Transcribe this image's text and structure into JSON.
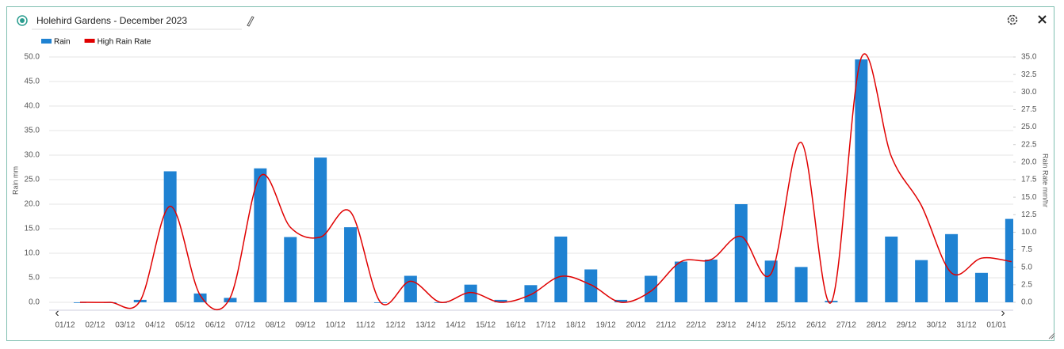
{
  "header": {
    "title": "Holehird Gardens - December 2023"
  },
  "chart_data": {
    "type": "bar-line",
    "y_label": "Rain mm",
    "y2_label": "Rain Rate mm/hr",
    "categories": [
      "01/12",
      "02/12",
      "03/12",
      "04/12",
      "05/12",
      "06/12",
      "07/12",
      "08/12",
      "09/12",
      "10/12",
      "11/12",
      "12/12",
      "13/12",
      "14/12",
      "15/12",
      "16/12",
      "17/12",
      "18/12",
      "19/12",
      "20/12",
      "21/12",
      "22/12",
      "23/12",
      "24/12",
      "25/12",
      "26/12",
      "27/12",
      "28/12",
      "29/12",
      "30/12",
      "31/12",
      "01/01"
    ],
    "series": [
      {
        "name": "Rain",
        "type": "bar",
        "color": "#1f82d2",
        "values": [
          0,
          0,
          0.5,
          26.7,
          1.8,
          0.9,
          27.3,
          13.3,
          29.5,
          15.3,
          0,
          5.4,
          0,
          3.6,
          0.5,
          3.5,
          13.4,
          6.7,
          0.5,
          5.4,
          8.3,
          8.7,
          20.0,
          8.5,
          7.2,
          0.3,
          49.5,
          13.4,
          8.6,
          13.9,
          6.0,
          17.0
        ]
      },
      {
        "name": "High Rain Rate",
        "type": "line",
        "axis": "y2",
        "color": "#e00000",
        "values": [
          0,
          0,
          0.2,
          13.7,
          1.0,
          0.7,
          18.0,
          10.7,
          9.3,
          12.9,
          0,
          3.0,
          0,
          1.4,
          0,
          1.1,
          3.7,
          2.5,
          0,
          1.6,
          5.8,
          6.1,
          9.4,
          4.1,
          22.8,
          0,
          34.9,
          20.8,
          13.8,
          4.2,
          6.3,
          5.8
        ]
      }
    ],
    "ylim": [
      0,
      50
    ],
    "yticks": [
      {
        "value": 0,
        "label": "0.0"
      },
      {
        "value": 5,
        "label": "5.0"
      },
      {
        "value": 10,
        "label": "10.0"
      },
      {
        "value": 15,
        "label": "15.0"
      },
      {
        "value": 20,
        "label": "20.0"
      },
      {
        "value": 25,
        "label": "25.0"
      },
      {
        "value": 30,
        "label": "30.0"
      },
      {
        "value": 35,
        "label": "35.0"
      },
      {
        "value": 40,
        "label": "40.0"
      },
      {
        "value": 45,
        "label": "45.0"
      },
      {
        "value": 50,
        "label": "50.0"
      }
    ],
    "y2lim": [
      0,
      35
    ],
    "y2ticks": [
      {
        "value": 0,
        "label": "0.0"
      },
      {
        "value": 2.5,
        "label": "2.5"
      },
      {
        "value": 5,
        "label": "5.0"
      },
      {
        "value": 7.5,
        "label": "7.5"
      },
      {
        "value": 10,
        "label": "10.0"
      },
      {
        "value": 12.5,
        "label": "12.5"
      },
      {
        "value": 15,
        "label": "15.0"
      },
      {
        "value": 17.5,
        "label": "17.5"
      },
      {
        "value": 20,
        "label": "20.0"
      },
      {
        "value": 22.5,
        "label": "22.5"
      },
      {
        "value": 25,
        "label": "25.0"
      },
      {
        "value": 27.5,
        "label": "27.5"
      },
      {
        "value": 30,
        "label": "30.0"
      },
      {
        "value": 32.5,
        "label": "32.5"
      },
      {
        "value": 35,
        "label": "35.0"
      }
    ],
    "grid": true
  }
}
